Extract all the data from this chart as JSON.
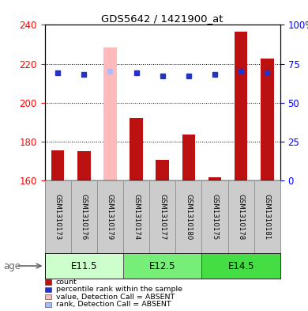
{
  "title": "GDS5642 / 1421900_at",
  "samples": [
    "GSM1310173",
    "GSM1310176",
    "GSM1310179",
    "GSM1310174",
    "GSM1310177",
    "GSM1310180",
    "GSM1310175",
    "GSM1310178",
    "GSM1310181"
  ],
  "groups": [
    {
      "label": "E11.5",
      "indices": [
        0,
        1,
        2
      ]
    },
    {
      "label": "E12.5",
      "indices": [
        3,
        4,
        5
      ]
    },
    {
      "label": "E14.5",
      "indices": [
        6,
        7,
        8
      ]
    }
  ],
  "count_values": [
    175.5,
    175.0,
    228.5,
    192.0,
    170.5,
    183.5,
    161.5,
    236.5,
    222.5
  ],
  "rank_values": [
    69,
    68,
    70,
    69,
    67,
    67,
    68,
    70,
    69
  ],
  "absent_indices": [
    2
  ],
  "ylim_left": [
    160,
    240
  ],
  "ylim_right": [
    0,
    100
  ],
  "yticks_left": [
    160,
    180,
    200,
    220,
    240
  ],
  "yticks_right": [
    0,
    25,
    50,
    75,
    100
  ],
  "ytick_labels_right": [
    "0",
    "25",
    "50",
    "75",
    "100%"
  ],
  "bar_color_normal": "#bb1111",
  "bar_color_absent": "#ffbbbb",
  "rank_color_normal": "#2233cc",
  "rank_color_absent": "#aabbff",
  "bar_width": 0.5,
  "rank_marker_size": 5,
  "legend_items": [
    {
      "label": "count",
      "color": "#bb1111"
    },
    {
      "label": "percentile rank within the sample",
      "color": "#2233cc"
    },
    {
      "label": "value, Detection Call = ABSENT",
      "color": "#ffbbbb"
    },
    {
      "label": "rank, Detection Call = ABSENT",
      "color": "#aabbff"
    }
  ],
  "group_colors": [
    "#ccffcc",
    "#77ee77",
    "#44dd44"
  ],
  "xlabel_age": "age",
  "ax_facecolor": "#ffffff",
  "label_bg": "#cccccc"
}
